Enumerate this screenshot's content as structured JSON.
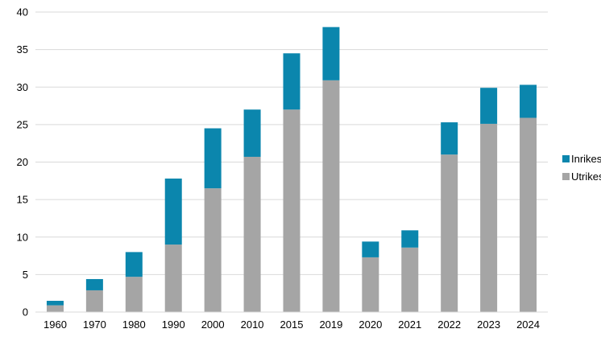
{
  "chart_data": {
    "type": "bar",
    "stacked": true,
    "categories": [
      "1960",
      "1970",
      "1980",
      "1990",
      "2000",
      "2010",
      "2015",
      "2019",
      "2020",
      "2021",
      "2022",
      "2023",
      "2024"
    ],
    "series": [
      {
        "name": "Utrikes",
        "color": "#a5a5a5",
        "values": [
          0.9,
          2.9,
          4.7,
          9.0,
          16.5,
          20.7,
          27.0,
          30.9,
          7.3,
          8.6,
          21.0,
          25.1,
          25.9
        ]
      },
      {
        "name": "Inrikes",
        "color": "#0b86ad",
        "values": [
          0.6,
          1.5,
          3.3,
          8.8,
          8.0,
          6.3,
          7.5,
          7.1,
          2.1,
          2.3,
          4.3,
          4.8,
          4.4
        ]
      }
    ],
    "ylim": [
      0,
      40
    ],
    "yticks": [
      "0",
      "5",
      "10",
      "15",
      "20",
      "25",
      "30",
      "35",
      "40"
    ],
    "grid": true,
    "legend": {
      "placement": "right",
      "entries": [
        "Inrikes",
        "Utrikes"
      ]
    },
    "title": "",
    "xlabel": "",
    "ylabel": ""
  }
}
